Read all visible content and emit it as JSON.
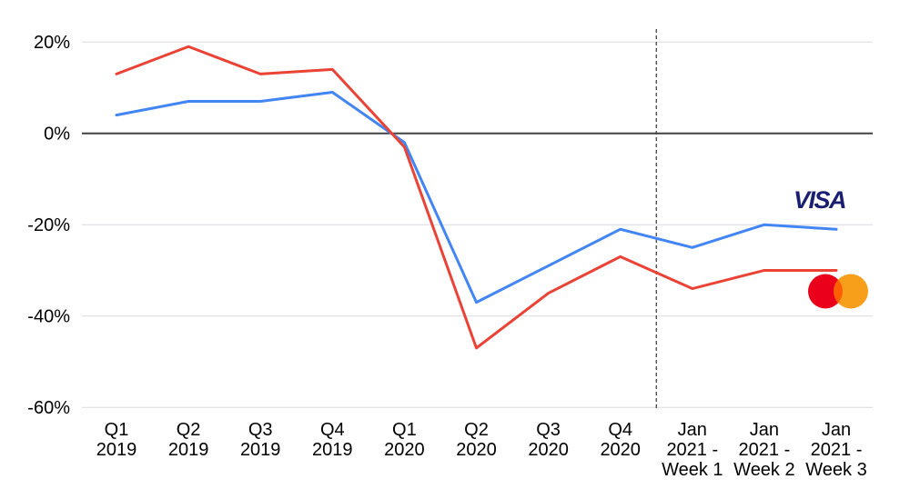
{
  "chart_data": {
    "type": "line",
    "title": "",
    "xlabel": "",
    "ylabel": "",
    "unit": "%",
    "categories": [
      "Q1 2019",
      "Q2 2019",
      "Q3 2019",
      "Q4 2019",
      "Q1 2020",
      "Q2 2020",
      "Q3 2020",
      "Q4 2020",
      "Jan 2021 - Week 1",
      "Jan 2021 - Week 2",
      "Jan 2021 - Week 3"
    ],
    "x_tick_lines": [
      [
        "Q1",
        "2019"
      ],
      [
        "Q2",
        "2019"
      ],
      [
        "Q3",
        "2019"
      ],
      [
        "Q4",
        "2019"
      ],
      [
        "Q1",
        "2020"
      ],
      [
        "Q2",
        "2020"
      ],
      [
        "Q3",
        "2020"
      ],
      [
        "Q4",
        "2020"
      ],
      [
        "Jan",
        "2021 -",
        "Week 1"
      ],
      [
        "Jan",
        "2021 -",
        "Week 2"
      ],
      [
        "Jan",
        "2021 -",
        "Week 3"
      ]
    ],
    "series": [
      {
        "name": "Visa",
        "color": "#4285F4",
        "values": [
          4,
          7,
          7,
          9,
          -2,
          -37,
          -29,
          -21,
          -25,
          -20,
          -21
        ]
      },
      {
        "name": "Mastercard",
        "color": "#EA4335",
        "values": [
          13,
          19,
          13,
          14,
          -3,
          -47,
          -35,
          -27,
          -34,
          -30,
          -30
        ]
      }
    ],
    "y_ticks": [
      {
        "label": "20%",
        "value": 20
      },
      {
        "label": "0%",
        "value": 0
      },
      {
        "label": "-20%",
        "value": -20
      },
      {
        "label": "-40%",
        "value": -40
      },
      {
        "label": "-60%",
        "value": -60
      }
    ],
    "ylim": [
      -60,
      23
    ],
    "grid": true,
    "zero_line_value": 0,
    "gridline_color": "#DADCE0",
    "zero_line_color": "#424242",
    "dashed_vline_between_indices": [
      7,
      8
    ],
    "dashed_vline_color": "#444444",
    "legend": "series identified by brand logos at right edge of lines"
  },
  "logos": {
    "visa_text": "VISA",
    "visa_color": "#1A1F71",
    "mastercard_red": "#EB001B",
    "mastercard_orange": "#F79E1B",
    "mastercard_overlap": "#FF5F00"
  }
}
